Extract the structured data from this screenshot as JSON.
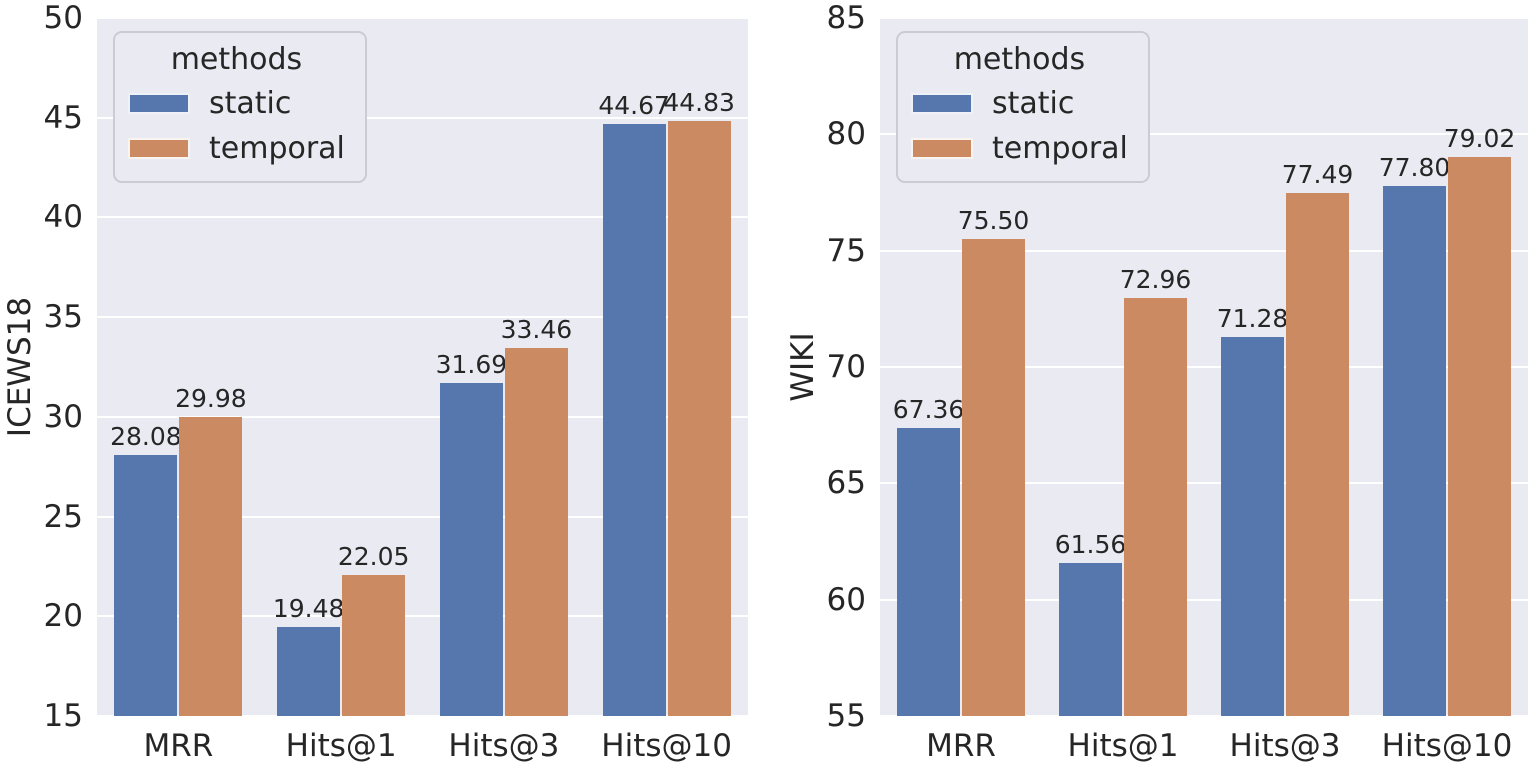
{
  "figure": {
    "background": "#FFFFFF",
    "plot_background": "#EAEAF2",
    "grid_color": "#FFFFFF",
    "text_color": "#262626",
    "legend": {
      "title": "methods",
      "entries": [
        {
          "label": "static",
          "color": "#5577AE"
        },
        {
          "label": "temporal",
          "color": "#CC8A63"
        }
      ]
    }
  },
  "chart_data": [
    {
      "type": "bar",
      "title": "",
      "ylabel": "ICEWS18",
      "xlabel": "",
      "categories": [
        "MRR",
        "Hits@1",
        "Hits@3",
        "Hits@10"
      ],
      "series": [
        {
          "name": "static",
          "color": "#5577AE",
          "values": [
            28.08,
            19.48,
            31.69,
            44.67
          ]
        },
        {
          "name": "temporal",
          "color": "#CC8A63",
          "values": [
            29.98,
            22.05,
            33.46,
            44.83
          ]
        }
      ],
      "ylim": [
        15,
        50
      ],
      "yticks": [
        15,
        20,
        25,
        30,
        35,
        40,
        45,
        50
      ],
      "grid": "horizontal",
      "legend_position": "upper-left",
      "bar_value_labels": true
    },
    {
      "type": "bar",
      "title": "",
      "ylabel": "WIKI",
      "xlabel": "",
      "categories": [
        "MRR",
        "Hits@1",
        "Hits@3",
        "Hits@10"
      ],
      "series": [
        {
          "name": "static",
          "color": "#5577AE",
          "values": [
            67.36,
            61.56,
            71.28,
            77.8
          ]
        },
        {
          "name": "temporal",
          "color": "#CC8A63",
          "values": [
            75.5,
            72.96,
            77.49,
            79.02
          ]
        }
      ],
      "ylim": [
        55,
        85
      ],
      "yticks": [
        55,
        60,
        65,
        70,
        75,
        80,
        85
      ],
      "grid": "horizontal",
      "legend_position": "upper-left",
      "bar_value_labels": true
    }
  ]
}
